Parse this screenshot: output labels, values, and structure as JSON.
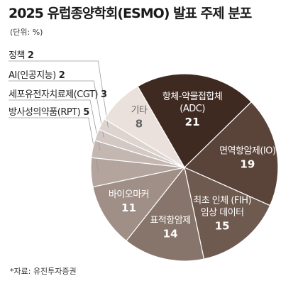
{
  "header": {
    "title": "2025 유럽종양학회(ESMO) 발표 주제 분포",
    "unit": "(단위: %)"
  },
  "footer": {
    "source": "*자료: 유진투자증권"
  },
  "chart_data": {
    "type": "pie",
    "title": "2025 유럽종양학회(ESMO) 발표 주제 분포",
    "unit": "%",
    "slices": [
      {
        "label": "항체-약물접합체(ADC)",
        "label_lines": [
          "항체-약물접합체",
          "(ADC)"
        ],
        "value": 21,
        "color": "#3f2a22",
        "text_color": "#ffffff",
        "label_position": "inside"
      },
      {
        "label": "면역항암제(IO)",
        "label_lines": [
          "면역항암제(IO)"
        ],
        "value": 19,
        "color": "#5a4338",
        "text_color": "#ffffff",
        "label_position": "inside"
      },
      {
        "label": "최초 인체 (FIH) 임상 데이터",
        "label_lines": [
          "최초 인체 (FIH)",
          "임상 데이터"
        ],
        "value": 15,
        "color": "#6f5a50",
        "text_color": "#ffffff",
        "label_position": "inside"
      },
      {
        "label": "표적항암제",
        "label_lines": [
          "표적항암제"
        ],
        "value": 14,
        "color": "#87746b",
        "text_color": "#ffffff",
        "label_position": "inside"
      },
      {
        "label": "바이오마커",
        "label_lines": [
          "바이오마커"
        ],
        "value": 11,
        "color": "#a08f87",
        "text_color": "#ffffff",
        "label_position": "inside"
      },
      {
        "label": "방사성의약품(RPT)",
        "label_lines": [
          "방사성의약품(RPT)"
        ],
        "value": 5,
        "color": "#b3a49d",
        "text_color": "#ffffff",
        "label_position": "outside"
      },
      {
        "label": "세포유전자치료제(CGT)",
        "label_lines": [
          "세포유전자치료제(CGT)"
        ],
        "value": 3,
        "color": "#c4b7b1",
        "text_color": "#ffffff",
        "label_position": "outside"
      },
      {
        "label": "AI(인공지능)",
        "label_lines": [
          "AI(인공지능)"
        ],
        "value": 2,
        "color": "#d3c8c3",
        "text_color": "#ffffff",
        "label_position": "outside"
      },
      {
        "label": "정책",
        "label_lines": [
          "정책"
        ],
        "value": 2,
        "color": "#ddd4d0",
        "text_color": "#ffffff",
        "label_position": "outside"
      },
      {
        "label": "기타",
        "label_lines": [
          "기타"
        ],
        "value": 8,
        "color": "#ebe1dc",
        "text_color": "#666666",
        "label_position": "inside"
      }
    ]
  }
}
